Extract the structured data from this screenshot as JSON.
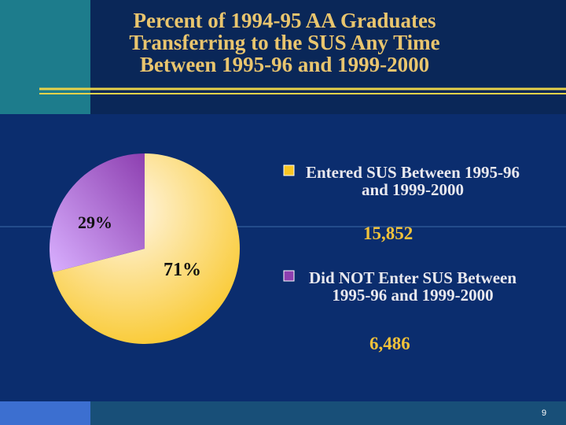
{
  "chart_data": {
    "type": "pie",
    "title": [
      "Percent of 1994-95 AA Graduates",
      "Transferring to the SUS Any Time",
      "Between 1995-96 and 1999-2000"
    ],
    "categories": [
      "Entered SUS Between 1995-96 and 1999-2000",
      "Did NOT Enter SUS Between 1995-96 and 1999-2000"
    ],
    "values": [
      71,
      29
    ],
    "value_labels": [
      "71%",
      "29%"
    ],
    "colors": [
      "#f9c623",
      "#8d3fb0"
    ],
    "counts": [
      15852,
      6486
    ],
    "count_labels": [
      "15,852",
      "6,486"
    ]
  },
  "page_number": "9"
}
